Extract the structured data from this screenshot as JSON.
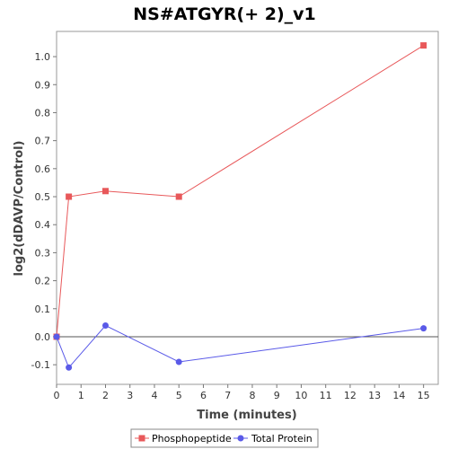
{
  "chart_data": {
    "type": "line",
    "title": "NS#ATGYR(+ 2)_v1",
    "xlabel": "Time (minutes)",
    "ylabel": "log2(dDAVP/Control)",
    "xlim": [
      0,
      15.6
    ],
    "ylim": [
      -0.17,
      1.09
    ],
    "xticks": [
      0,
      1,
      2,
      3,
      4,
      5,
      6,
      7,
      8,
      9,
      10,
      11,
      12,
      13,
      14,
      15
    ],
    "yticks": [
      -0.1,
      0.0,
      0.1,
      0.2,
      0.3,
      0.4,
      0.5,
      0.6,
      0.7,
      0.8,
      0.9,
      1.0
    ],
    "grid": false,
    "legend_position": "bottom",
    "series": [
      {
        "name": "Phosphopeptide",
        "color": "#e8585a",
        "marker": "square",
        "x": [
          0,
          0.5,
          2,
          5,
          15
        ],
        "y": [
          0.0,
          0.5,
          0.52,
          0.5,
          1.04
        ]
      },
      {
        "name": "Total Protein",
        "color": "#5a5ae8",
        "marker": "circle",
        "x": [
          0,
          0.5,
          2,
          5,
          15
        ],
        "y": [
          0.0,
          -0.11,
          0.04,
          -0.09,
          0.03
        ]
      }
    ]
  }
}
